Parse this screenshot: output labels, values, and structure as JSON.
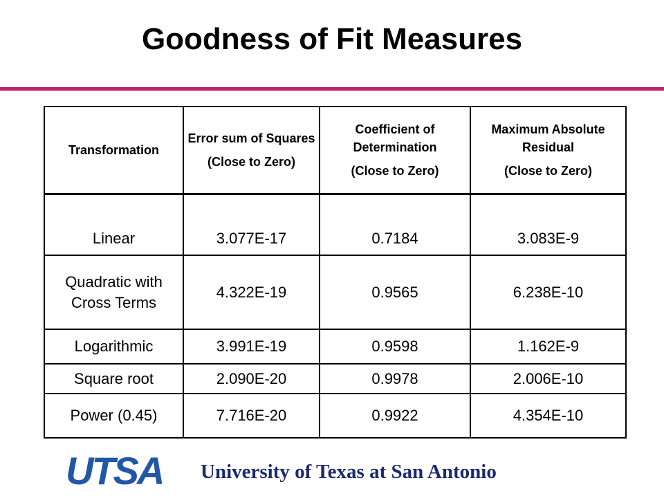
{
  "header": {
    "title": "Goodness of Fit Measures"
  },
  "table": {
    "columns": [
      {
        "label": "Transformation"
      },
      {
        "label": "Error sum of Squares",
        "note": "(Close to Zero)"
      },
      {
        "label": "Coefficient of Determination",
        "note": "(Close to Zero)"
      },
      {
        "label": "Maximum Absolute Residual",
        "note": "(Close to Zero)"
      }
    ],
    "rows": [
      [
        "Linear",
        "3.077E-17",
        "0.7184",
        "3.083E-9"
      ],
      [
        "Quadratic with Cross Terms",
        "4.322E-19",
        "0.9565",
        "6.238E-10"
      ],
      [
        "Logarithmic",
        "3.991E-19",
        "0.9598",
        "1.162E-9"
      ],
      [
        "Square root",
        "2.090E-20",
        "0.9978",
        "2.006E-10"
      ],
      [
        "Power (0.45)",
        "7.716E-20",
        "0.9922",
        "4.354E-10"
      ]
    ]
  },
  "footer": {
    "logo": "UTSA",
    "text": "University of Texas at San Antonio"
  }
}
